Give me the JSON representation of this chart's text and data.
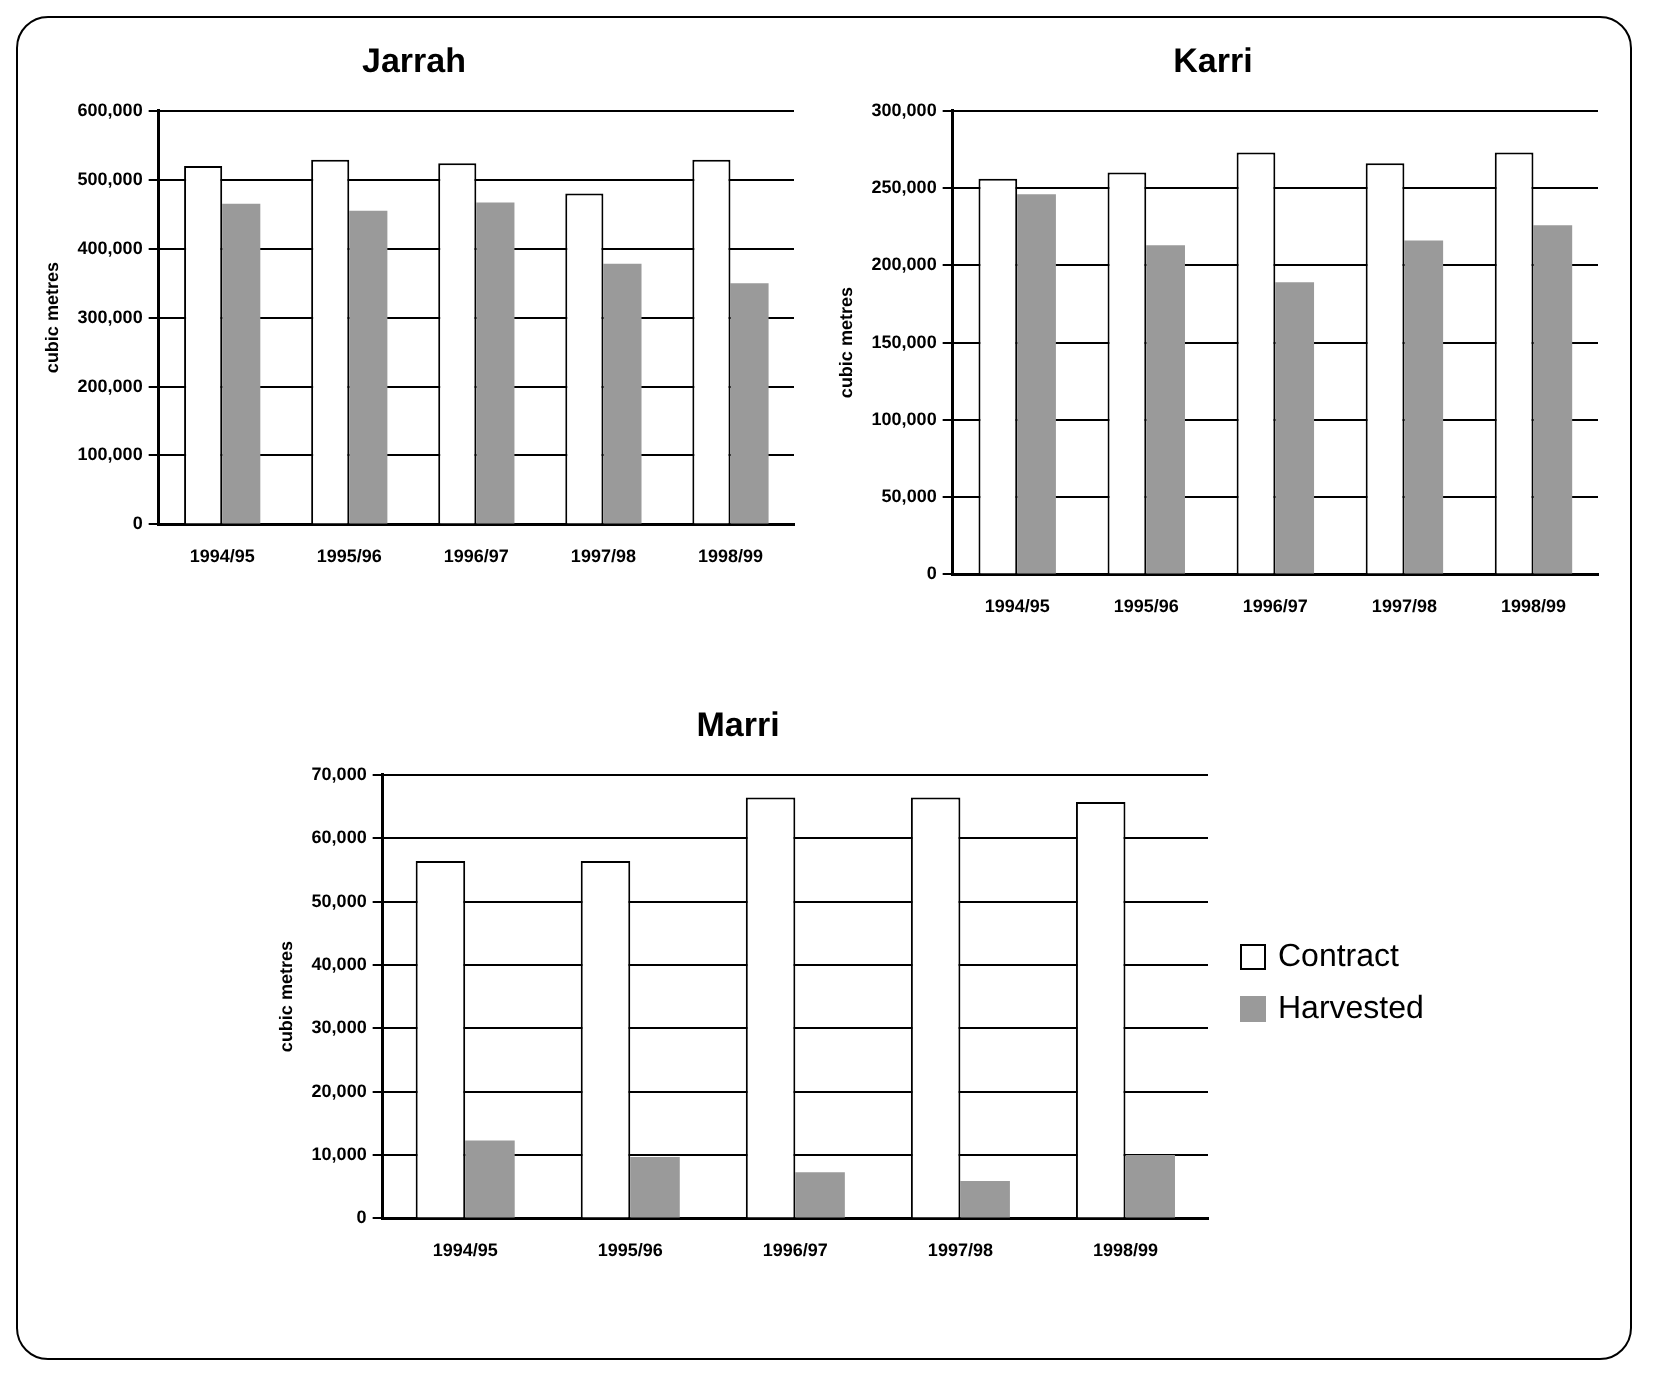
{
  "chart_data": [
    {
      "type": "bar",
      "title": "Jarrah",
      "ylabel": "cubic metres",
      "categories": [
        "1994/95",
        "1995/96",
        "1996/97",
        "1997/98",
        "1998/99"
      ],
      "series": [
        {
          "color": "#ffffff",
          "values": [
            520000,
            529000,
            524000,
            480000,
            529000
          ]
        },
        {
          "color": "#9a9a9a",
          "values": [
            465000,
            455000,
            467000,
            378000,
            350000
          ]
        }
      ],
      "ylim": [
        0,
        600000
      ],
      "yticks": [
        {
          "value": 0,
          "label": "0"
        },
        {
          "value": 100000,
          "label": "100,000"
        },
        {
          "value": 200000,
          "label": "200,000"
        },
        {
          "value": 300000,
          "label": "300,000"
        },
        {
          "value": 400000,
          "label": "400,000"
        },
        {
          "value": 500000,
          "label": "500,000"
        },
        {
          "value": 600000,
          "label": "600,000"
        }
      ],
      "grid": "y"
    },
    {
      "type": "bar",
      "title": "Karri",
      "ylabel": "cubic metres",
      "categories": [
        "1994/95",
        "1995/96",
        "1996/97",
        "1997/98",
        "1998/99"
      ],
      "series": [
        {
          "color": "#ffffff",
          "values": [
            256000,
            260000,
            273000,
            266000,
            273000
          ]
        },
        {
          "color": "#9a9a9a",
          "values": [
            246000,
            213000,
            189000,
            216000,
            226000
          ]
        }
      ],
      "ylim": [
        0,
        300000
      ],
      "yticks": [
        {
          "value": 0,
          "label": "0"
        },
        {
          "value": 50000,
          "label": "50,000"
        },
        {
          "value": 100000,
          "label": "100,000"
        },
        {
          "value": 150000,
          "label": "150,000"
        },
        {
          "value": 200000,
          "label": "200,000"
        },
        {
          "value": 250000,
          "label": "250,000"
        },
        {
          "value": 300000,
          "label": "300,000"
        }
      ],
      "grid": "y"
    },
    {
      "type": "bar",
      "title": "Marri",
      "ylabel": "cubic metres",
      "categories": [
        "1994/95",
        "1995/96",
        "1996/97",
        "1997/98",
        "1998/99"
      ],
      "series": [
        {
          "name": "Contract",
          "color": "#ffffff",
          "values": [
            56400,
            56400,
            66400,
            66400,
            65700
          ]
        },
        {
          "name": "Harvested",
          "color": "#9a9a9a",
          "values": [
            12300,
            9700,
            7300,
            5900,
            10000
          ]
        }
      ],
      "ylim": [
        0,
        70000
      ],
      "yticks": [
        {
          "value": 0,
          "label": "0"
        },
        {
          "value": 10000,
          "label": "10,000"
        },
        {
          "value": 20000,
          "label": "20,000"
        },
        {
          "value": 30000,
          "label": "30,000"
        },
        {
          "value": 40000,
          "label": "40,000"
        },
        {
          "value": 50000,
          "label": "50,000"
        },
        {
          "value": 60000,
          "label": "60,000"
        },
        {
          "value": 70000,
          "label": "70,000"
        }
      ],
      "grid": "y",
      "legend": "right"
    }
  ]
}
